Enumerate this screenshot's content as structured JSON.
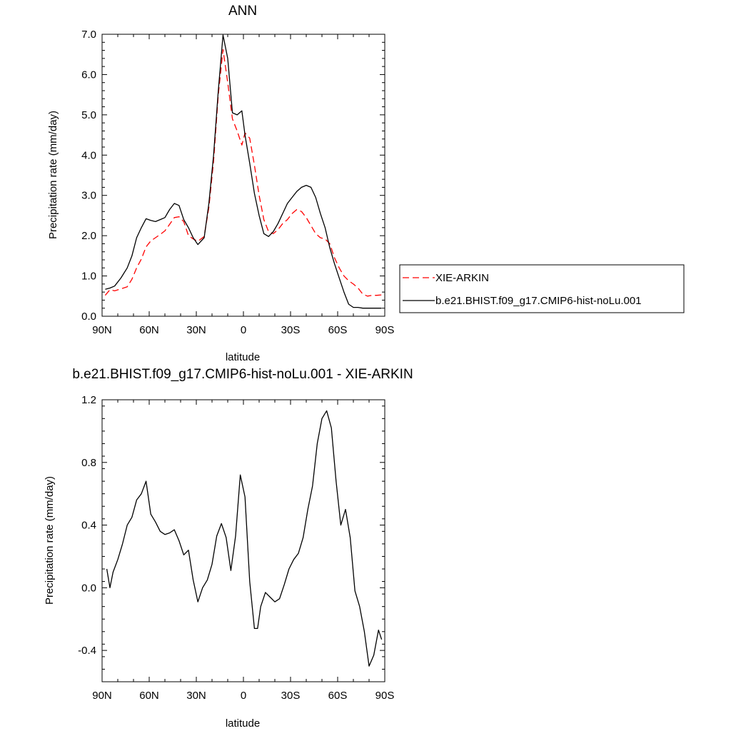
{
  "chart_data": [
    {
      "type": "line",
      "title": "ANN",
      "xlabel": "latitude",
      "ylabel": "Precipitation rate (mm/day)",
      "xlim": [
        -90,
        90
      ],
      "ylim": [
        0.0,
        7.0
      ],
      "xticks": [
        -90,
        -60,
        -30,
        0,
        30,
        60,
        90
      ],
      "xtick_labels": [
        "90N",
        "60N",
        "30N",
        "0",
        "30S",
        "60S",
        "90S"
      ],
      "yticks": [
        0,
        1,
        2,
        3,
        4,
        5,
        6,
        7
      ],
      "ytick_labels": [
        "0.0",
        "1.0",
        "2.0",
        "3.0",
        "4.0",
        "5.0",
        "6.0",
        "7.0"
      ],
      "series": [
        {
          "name": "XIE-ARKIN",
          "color": "#ff0000",
          "dash": "dashed",
          "x": [
            -88,
            -85,
            -82,
            -78,
            -74,
            -71,
            -68,
            -65,
            -62,
            -59,
            -56,
            -53,
            -50,
            -47,
            -44,
            -41,
            -38,
            -35,
            -32,
            -29,
            -25,
            -22,
            -19,
            -16,
            -13,
            -10,
            -7,
            -4,
            -1,
            1,
            4,
            7,
            10,
            13,
            16,
            19,
            22,
            25,
            28,
            31,
            34,
            37,
            40,
            43,
            46,
            49,
            52,
            55,
            58,
            61,
            64,
            67,
            70,
            73,
            76,
            79,
            82,
            85,
            88
          ],
          "y": [
            0.52,
            0.66,
            0.63,
            0.68,
            0.73,
            0.92,
            1.2,
            1.42,
            1.72,
            1.87,
            1.95,
            2.03,
            2.12,
            2.28,
            2.45,
            2.47,
            2.35,
            2.0,
            1.92,
            1.86,
            1.98,
            2.7,
            3.85,
            5.5,
            6.62,
            5.8,
            4.9,
            4.6,
            4.25,
            4.55,
            4.42,
            3.75,
            3.0,
            2.4,
            2.1,
            2.05,
            2.15,
            2.3,
            2.4,
            2.55,
            2.65,
            2.6,
            2.45,
            2.25,
            2.05,
            1.95,
            1.92,
            1.8,
            1.45,
            1.2,
            1.0,
            0.88,
            0.8,
            0.7,
            0.55,
            0.5,
            0.52,
            0.52,
            0.53
          ]
        },
        {
          "name": "b.e21.BHIST.f09_g17.CMIP6-hist-noLu.001",
          "color": "#000000",
          "dash": "solid",
          "x": [
            -88,
            -85,
            -82,
            -78,
            -74,
            -71,
            -68,
            -65,
            -62,
            -59,
            -56,
            -53,
            -50,
            -47,
            -44,
            -41,
            -38,
            -35,
            -32,
            -29,
            -25,
            -22,
            -19,
            -16,
            -13,
            -10,
            -7,
            -4,
            -1,
            1,
            4,
            7,
            10,
            13,
            16,
            19,
            22,
            25,
            28,
            31,
            34,
            37,
            40,
            43,
            46,
            49,
            52,
            55,
            58,
            61,
            64,
            67,
            70,
            73,
            76,
            79,
            82,
            85,
            88
          ],
          "y": [
            0.67,
            0.7,
            0.75,
            0.95,
            1.2,
            1.5,
            1.95,
            2.2,
            2.42,
            2.38,
            2.35,
            2.4,
            2.45,
            2.65,
            2.8,
            2.75,
            2.4,
            2.2,
            1.95,
            1.78,
            1.95,
            2.8,
            4.0,
            5.6,
            6.98,
            6.4,
            5.05,
            5.0,
            5.1,
            4.5,
            3.8,
            3.05,
            2.5,
            2.05,
            1.98,
            2.1,
            2.3,
            2.55,
            2.8,
            2.95,
            3.1,
            3.2,
            3.25,
            3.2,
            2.95,
            2.55,
            2.2,
            1.7,
            1.3,
            0.95,
            0.6,
            0.3,
            0.22,
            0.22,
            0.2,
            0.2,
            0.2,
            0.2,
            0.2
          ]
        }
      ],
      "legend": {
        "placement": "right",
        "entries": [
          "XIE-ARKIN",
          "b.e21.BHIST.f09_g17.CMIP6-hist-noLu.001"
        ]
      },
      "grid": false
    },
    {
      "type": "line",
      "title": "b.e21.BHIST.f09_g17.CMIP6-hist-noLu.001 - XIE-ARKIN",
      "xlabel": "latitude",
      "ylabel": "Precipitation rate (mm/day)",
      "xlim": [
        -90,
        90
      ],
      "ylim": [
        -0.6,
        1.2
      ],
      "xticks": [
        -90,
        -60,
        -30,
        0,
        30,
        60,
        90
      ],
      "xtick_labels": [
        "90N",
        "60N",
        "30N",
        "0",
        "30S",
        "60S",
        "90S"
      ],
      "yticks": [
        -0.4,
        0.0,
        0.4,
        0.8,
        1.2
      ],
      "ytick_labels": [
        "-0.4",
        "0.0",
        "0.4",
        "0.8",
        "1.2"
      ],
      "series": [
        {
          "name": "",
          "color": "#000000",
          "dash": "solid",
          "x": [
            -87,
            -85,
            -83,
            -80,
            -77,
            -74,
            -71,
            -68,
            -65,
            -62,
            -59,
            -56,
            -53,
            -50,
            -47,
            -44,
            -41,
            -38,
            -35,
            -32,
            -29,
            -26,
            -23,
            -20,
            -17,
            -14,
            -11,
            -8,
            -5,
            -2,
            1,
            4,
            7,
            9,
            11,
            14,
            17,
            20,
            23,
            26,
            29,
            32,
            35,
            38,
            41,
            44,
            47,
            50,
            53,
            56,
            59,
            62,
            65,
            68,
            71,
            74,
            77,
            80,
            83,
            86,
            88
          ],
          "y": [
            0.12,
            0.0,
            0.1,
            0.18,
            0.28,
            0.4,
            0.45,
            0.56,
            0.6,
            0.68,
            0.47,
            0.42,
            0.36,
            0.34,
            0.35,
            0.37,
            0.3,
            0.21,
            0.24,
            0.05,
            -0.09,
            0.0,
            0.05,
            0.15,
            0.33,
            0.41,
            0.32,
            0.11,
            0.33,
            0.72,
            0.58,
            0.04,
            -0.26,
            -0.26,
            -0.12,
            -0.03,
            -0.06,
            -0.09,
            -0.07,
            0.02,
            0.12,
            0.18,
            0.22,
            0.32,
            0.5,
            0.65,
            0.92,
            1.08,
            1.13,
            1.02,
            0.68,
            0.4,
            0.5,
            0.32,
            -0.02,
            -0.12,
            -0.28,
            -0.5,
            -0.43,
            -0.27,
            -0.33
          ]
        }
      ],
      "grid": false
    }
  ]
}
